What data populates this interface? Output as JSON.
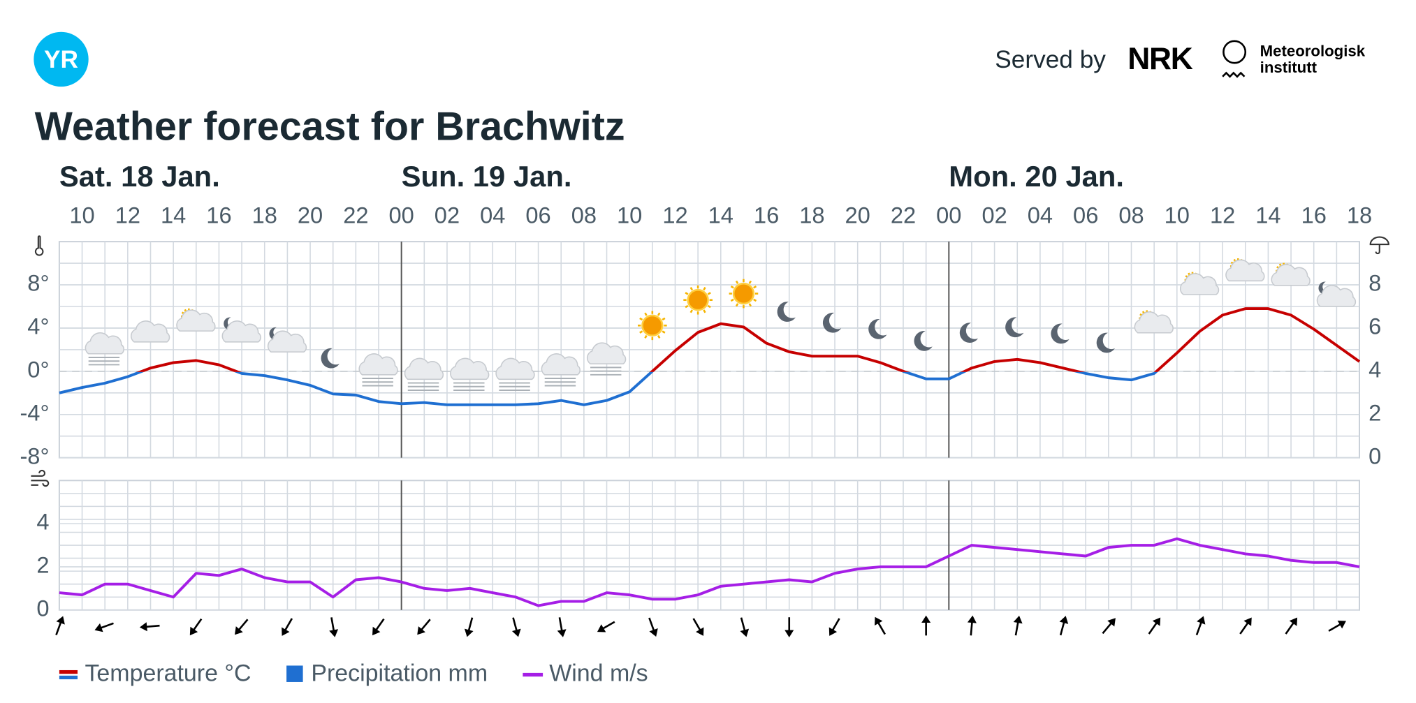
{
  "header": {
    "logo": "YR",
    "served_by": "Served by",
    "nrk": "NRK",
    "met": [
      "Meteorologisk",
      "institutt"
    ],
    "title": "Weather forecast for Brachwitz"
  },
  "chart_data": [
    {
      "type": "line",
      "days": [
        "Sat. 18 Jan.",
        "Sun. 19 Jan.",
        "Mon. 20 Jan."
      ],
      "xticks": [
        "10",
        "12",
        "14",
        "16",
        "18",
        "20",
        "22",
        "00",
        "02",
        "04",
        "06",
        "08",
        "10",
        "12",
        "14",
        "16",
        "18",
        "20",
        "22",
        "00",
        "02",
        "04",
        "06",
        "08",
        "10",
        "12",
        "14",
        "16",
        "18"
      ],
      "ylim": [
        -8,
        12
      ],
      "yticks": [
        {
          "value": 8,
          "label": "8°"
        },
        {
          "value": 4,
          "label": "4°"
        },
        {
          "value": 0,
          "label": "0°"
        },
        {
          "value": -4,
          "label": "-4°"
        },
        {
          "value": -8,
          "label": "-8°"
        }
      ],
      "y2lim": [
        0,
        10
      ],
      "y2ticks": [
        8,
        6,
        4,
        2,
        0
      ],
      "series": [
        {
          "name": "Temperature °C",
          "color": "#c60000",
          "color_below_zero": "#1f6fd1",
          "values": [
            -2.0,
            -1.5,
            -1.1,
            -0.5,
            0.3,
            0.8,
            1.0,
            0.6,
            -0.2,
            -0.4,
            -0.8,
            -1.3,
            -2.1,
            -2.2,
            -2.8,
            -3.0,
            -2.9,
            -3.1,
            -3.1,
            -3.1,
            -3.1,
            -3.0,
            -2.7,
            -3.1,
            -2.7,
            -1.9,
            0.0,
            1.9,
            3.6,
            4.4,
            4.1,
            2.6,
            1.8,
            1.4,
            1.4,
            1.4,
            0.8,
            0.0,
            -0.7,
            -0.7,
            0.3,
            0.9,
            1.1,
            0.8,
            0.3,
            -0.2,
            -0.6,
            -0.8,
            -0.2,
            1.7,
            3.7,
            5.2,
            5.8,
            5.8,
            5.2,
            3.9,
            2.4,
            0.9
          ]
        },
        {
          "name": "Precipitation mm",
          "color": "#1f6fd1",
          "axis": "y2",
          "values": [
            0,
            0,
            0,
            0,
            0,
            0,
            0,
            0,
            0,
            0,
            0,
            0,
            0,
            0,
            0,
            0,
            0,
            0,
            0,
            0,
            0,
            0,
            0,
            0,
            0,
            0,
            0,
            0,
            0,
            0,
            0,
            0,
            0,
            0,
            0,
            0,
            0,
            0,
            0,
            0,
            0,
            0,
            0,
            0,
            0,
            0,
            0,
            0,
            0,
            0,
            0,
            0,
            0,
            0,
            0,
            0,
            0,
            0
          ]
        }
      ]
    },
    {
      "type": "line",
      "ylim": [
        0,
        6
      ],
      "yticks": [
        4,
        2,
        0
      ],
      "series": [
        {
          "name": "Wind m/s",
          "color": "#a51ee6",
          "values": [
            0.8,
            0.7,
            1.2,
            1.2,
            0.9,
            0.6,
            1.7,
            1.6,
            1.9,
            1.5,
            1.3,
            1.3,
            0.6,
            1.4,
            1.5,
            1.3,
            1.0,
            0.9,
            1.0,
            0.8,
            0.6,
            0.2,
            0.4,
            0.4,
            0.8,
            0.7,
            0.5,
            0.5,
            0.7,
            1.1,
            1.2,
            1.3,
            1.4,
            1.3,
            1.7,
            1.9,
            2.0,
            2.0,
            2.0,
            2.5,
            3.0,
            2.9,
            2.8,
            2.7,
            2.6,
            2.5,
            2.9,
            3.0,
            3.0,
            3.3,
            3.0,
            2.8,
            2.6,
            2.5,
            2.3,
            2.2,
            2.2,
            2.0
          ]
        }
      ],
      "wind_direction": [
        20,
        250,
        265,
        215,
        220,
        210,
        170,
        215,
        220,
        195,
        165,
        170,
        240,
        160,
        150,
        165,
        180,
        210,
        330,
        0,
        5,
        10,
        15,
        40,
        35,
        20,
        35,
        35,
        60
      ]
    }
  ]
}
